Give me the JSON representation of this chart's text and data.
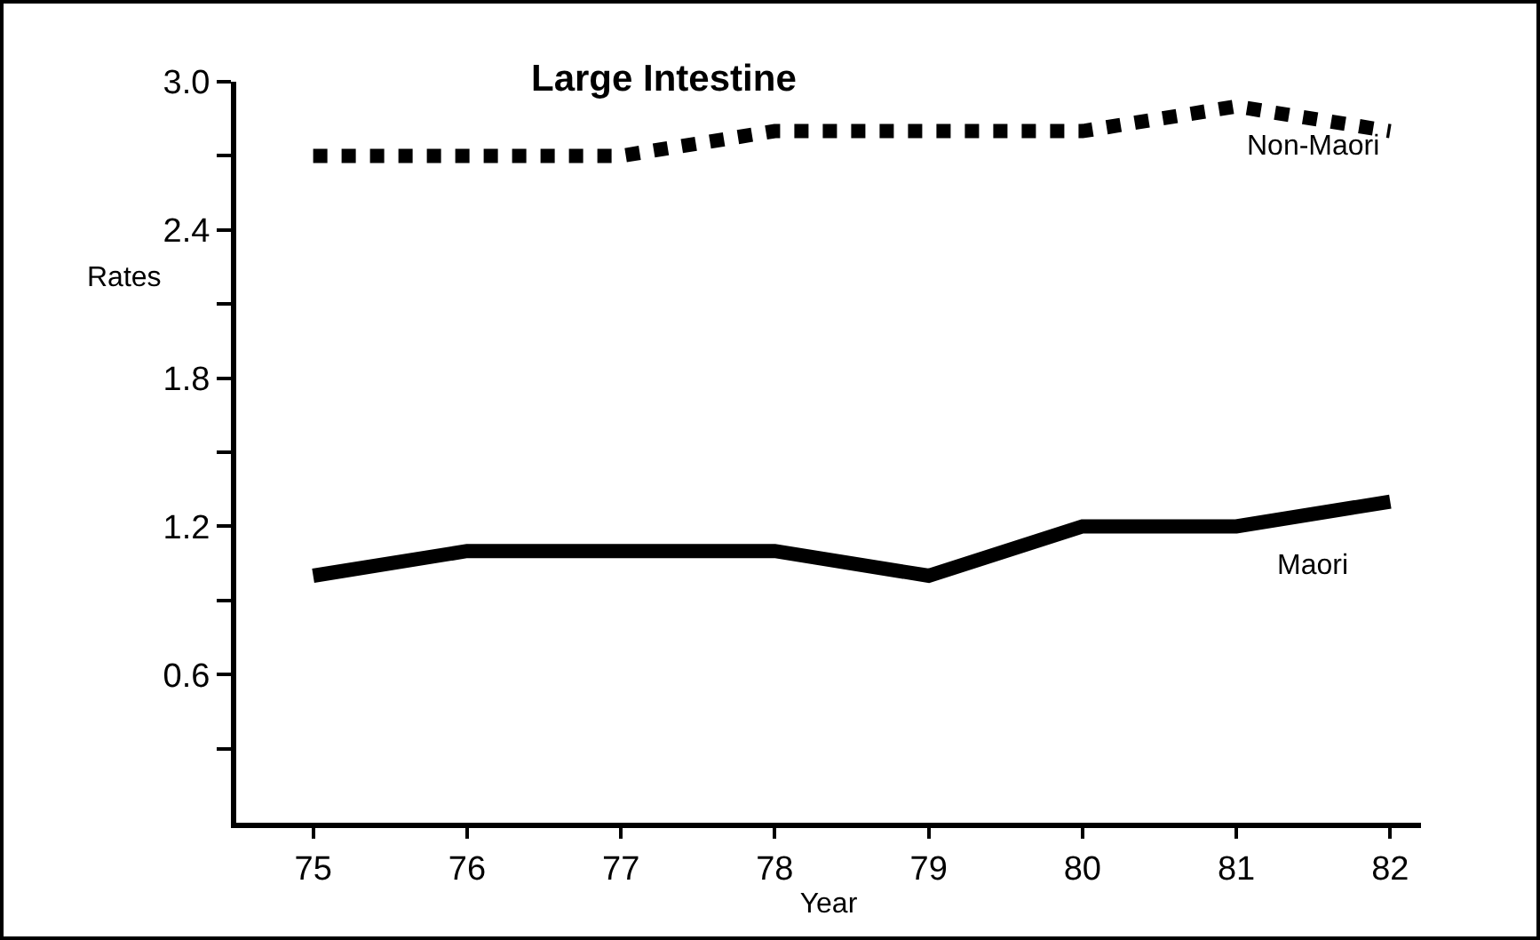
{
  "chart_data": {
    "type": "line",
    "title": "Large Intestine",
    "xlabel": "Year",
    "ylabel": "Rates",
    "x": [
      75,
      76,
      77,
      78,
      79,
      80,
      81,
      82
    ],
    "series": [
      {
        "name": "Non-Maori",
        "color": "#000000",
        "line_style": "dotted",
        "values": [
          2.7,
          2.7,
          2.7,
          2.8,
          2.8,
          2.8,
          2.9,
          2.8
        ]
      },
      {
        "name": "Maori",
        "color": "#000000",
        "line_style": "solid",
        "values": [
          1.0,
          1.1,
          1.1,
          1.1,
          1.0,
          1.2,
          1.2,
          1.3
        ]
      }
    ],
    "xlim": [
      74.5,
      82.2
    ],
    "xticks": [
      75,
      76,
      77,
      78,
      79,
      80,
      81,
      82
    ],
    "ylim": [
      0,
      3.0
    ],
    "yticks": [
      {
        "value": 0.3,
        "label": null
      },
      0.6,
      {
        "value": 0.9,
        "label": null
      },
      1.2,
      {
        "value": 1.5,
        "label": null
      },
      1.8,
      {
        "value": 2.1,
        "label": null
      },
      2.4,
      {
        "value": 2.7,
        "label": null
      },
      {
        "value": 3,
        "label": "3.0"
      }
    ],
    "grid": false,
    "legend": false,
    "marker": "none"
  }
}
